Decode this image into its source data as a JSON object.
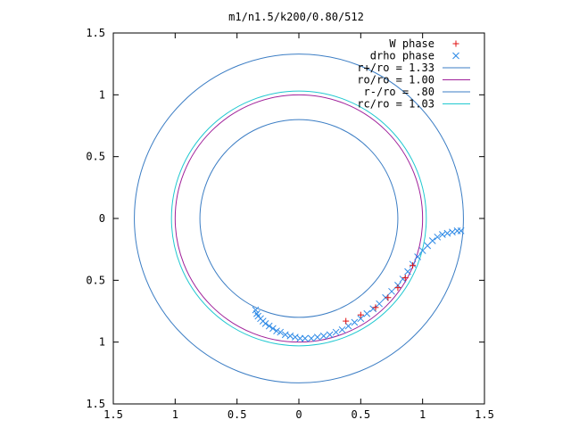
{
  "chart_data": {
    "type": "scatter",
    "title": "m1/n1.5/k200/0.80/512",
    "xlabel": "",
    "ylabel": "",
    "xlim": [
      -1.5,
      1.5
    ],
    "ylim": [
      -1.5,
      1.5
    ],
    "x_tick_labels": [
      "1.5",
      "1",
      "0.5",
      "0",
      "0.5",
      "1",
      "1.5"
    ],
    "x_tick_values": [
      -1.5,
      -1,
      -0.5,
      0,
      0.5,
      1,
      1.5
    ],
    "y_tick_labels": [
      "1.5",
      "1",
      "0.5",
      "0",
      "0.5",
      "1",
      "1.5"
    ],
    "y_tick_values": [
      1.5,
      1,
      0.5,
      0,
      -0.5,
      -1,
      -1.5
    ],
    "legend_placement": "top-right",
    "circles": [
      {
        "name": "r+/ro = 1.33",
        "radius": 1.33,
        "color": "#3b7dc4"
      },
      {
        "name": "ro/ro = 1.00",
        "radius": 1.0,
        "color": "#a0209a"
      },
      {
        "name": "r-/ro = .80",
        "radius": 0.8,
        "color": "#3b7dc4"
      },
      {
        "name": "rc/ro = 1.03",
        "radius": 1.03,
        "color": "#20c8d0"
      }
    ],
    "series": [
      {
        "name": "W phase",
        "marker": "+",
        "color": "#e01010",
        "points": [
          [
            0.38,
            -0.83
          ],
          [
            0.5,
            -0.78
          ],
          [
            0.62,
            -0.72
          ],
          [
            0.72,
            -0.64
          ],
          [
            0.8,
            -0.56
          ],
          [
            0.86,
            -0.48
          ],
          [
            0.92,
            -0.38
          ]
        ]
      },
      {
        "name": "drho phase",
        "marker": "x",
        "color": "#2e8ae6",
        "points": [
          [
            -0.35,
            -0.74
          ],
          [
            -0.34,
            -0.77
          ],
          [
            -0.33,
            -0.79
          ],
          [
            -0.31,
            -0.81
          ],
          [
            -0.29,
            -0.83
          ],
          [
            -0.27,
            -0.85
          ],
          [
            -0.24,
            -0.87
          ],
          [
            -0.21,
            -0.89
          ],
          [
            -0.18,
            -0.91
          ],
          [
            -0.15,
            -0.92
          ],
          [
            -0.11,
            -0.94
          ],
          [
            -0.07,
            -0.95
          ],
          [
            -0.03,
            -0.96
          ],
          [
            0.01,
            -0.97
          ],
          [
            0.05,
            -0.97
          ],
          [
            0.1,
            -0.97
          ],
          [
            0.15,
            -0.96
          ],
          [
            0.2,
            -0.95
          ],
          [
            0.25,
            -0.94
          ],
          [
            0.3,
            -0.92
          ],
          [
            0.35,
            -0.9
          ],
          [
            0.4,
            -0.87
          ],
          [
            0.45,
            -0.84
          ],
          [
            0.5,
            -0.81
          ],
          [
            0.55,
            -0.77
          ],
          [
            0.6,
            -0.73
          ],
          [
            0.65,
            -0.69
          ],
          [
            0.7,
            -0.64
          ],
          [
            0.75,
            -0.59
          ],
          [
            0.8,
            -0.54
          ],
          [
            0.84,
            -0.49
          ],
          [
            0.88,
            -0.43
          ],
          [
            0.92,
            -0.37
          ],
          [
            0.96,
            -0.31
          ],
          [
            1.0,
            -0.26
          ],
          [
            1.04,
            -0.22
          ],
          [
            1.08,
            -0.18
          ],
          [
            1.12,
            -0.15
          ],
          [
            1.16,
            -0.13
          ],
          [
            1.2,
            -0.12
          ],
          [
            1.24,
            -0.11
          ],
          [
            1.28,
            -0.1
          ],
          [
            1.31,
            -0.1
          ]
        ]
      }
    ]
  }
}
